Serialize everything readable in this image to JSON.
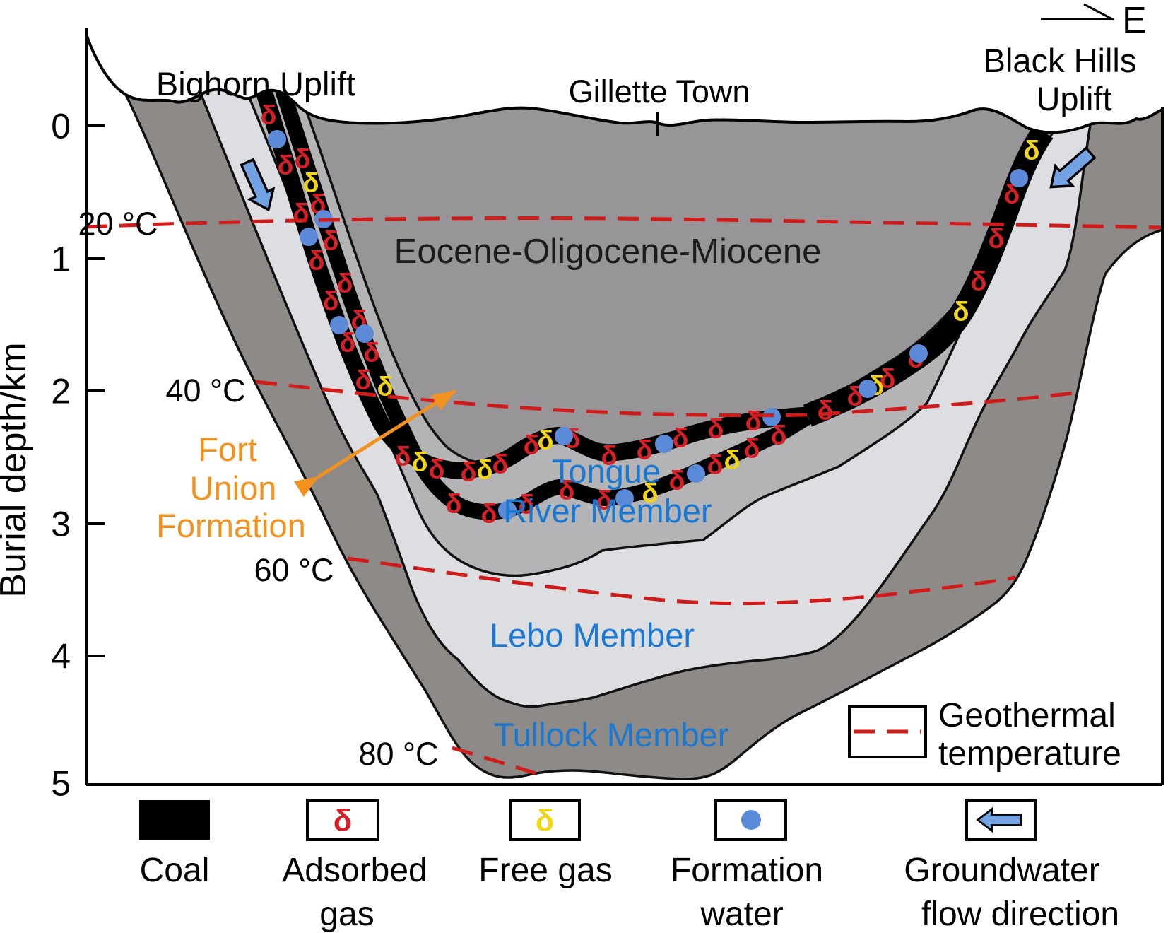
{
  "header": {
    "left_uplift": "Bighorn Uplift",
    "town": "Gillette Town",
    "right_uplift_line1": "Black Hills",
    "right_uplift_line2": "Uplift",
    "direction": "E"
  },
  "axis": {
    "label": "Burial depth/km",
    "ticks": [
      "0",
      "1",
      "2",
      "3",
      "4",
      "5"
    ]
  },
  "isotherms": {
    "t20": "20 °C",
    "t40": "40 °C",
    "t60": "60 °C",
    "t80": "80 °C"
  },
  "strata": {
    "eocene": "Eocene-Oligocene-Miocene",
    "fort_union_line1": "Fort",
    "fort_union_line2": "Union",
    "fort_union_line3": "Formation",
    "tongue_line1": "Tongue",
    "tongue_line2": "River Member",
    "lebo": "Lebo Member",
    "tullock": "Tullock Member"
  },
  "legend": {
    "coal": "Coal",
    "adsorbed_line1": "Adsorbed",
    "adsorbed_line2": "gas",
    "free_gas": "Free gas",
    "formation_line1": "Formation",
    "formation_line2": "water",
    "groundwater_line1": "Groundwater",
    "groundwater_line2": "flow direction",
    "geothermal_line1": "Geothermal",
    "geothermal_line2": "temperature",
    "gas_symbol": "δ"
  },
  "colors": {
    "eocene_fill": "#979598",
    "tongue_fill": "#b4b4b6",
    "lebo_fill": "#dcdee2",
    "tullock_fill": "#8e8a88",
    "coal": "#000000",
    "isotherm_red": "#d01b1b",
    "member_label_blue": "#1878d2",
    "formation_label_orange": "#f2911d",
    "water_blue": "#5b8bd8",
    "arrow_blue": "#74a3e3",
    "free_gas_yellow": "#f0d518",
    "adsorbed_gas_red": "#d61f26"
  }
}
